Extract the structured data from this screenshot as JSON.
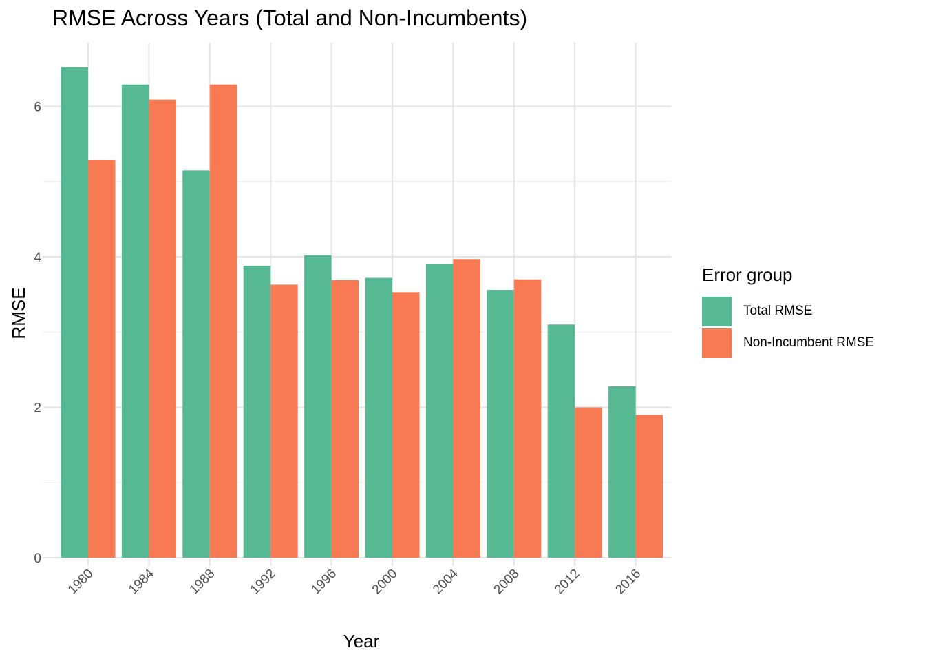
{
  "chart_data": {
    "type": "bar",
    "title": "RMSE Across Years (Total and Non-Incumbents)",
    "xlabel": "Year",
    "ylabel": "RMSE",
    "categories": [
      "1980",
      "1984",
      "1988",
      "1992",
      "1996",
      "2000",
      "2004",
      "2008",
      "2012",
      "2016"
    ],
    "series": [
      {
        "name": "Total RMSE",
        "color": "#56B993",
        "values": [
          6.52,
          6.29,
          5.15,
          3.88,
          4.02,
          3.72,
          3.9,
          3.56,
          3.1,
          2.28
        ]
      },
      {
        "name": "Non-Incumbent RMSE",
        "color": "#F87A53",
        "values": [
          5.29,
          6.09,
          6.29,
          3.63,
          3.69,
          3.53,
          3.97,
          3.7,
          2.0,
          1.9
        ]
      }
    ],
    "ylim": [
      0,
      6.6
    ],
    "yticks": [
      "0",
      "2",
      "4",
      "6"
    ],
    "grid": true,
    "legend": {
      "title": "Error group",
      "position": "right"
    }
  }
}
